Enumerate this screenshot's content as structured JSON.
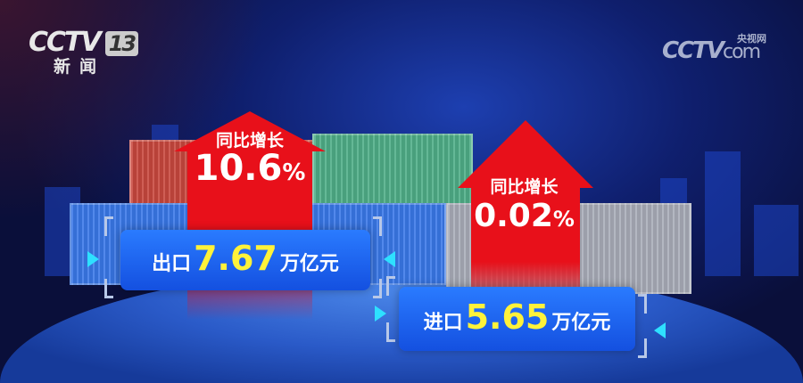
{
  "channel_logo": {
    "brand": "CCTV",
    "number": "13",
    "name": "新闻"
  },
  "watermark": {
    "brand": "CCTV",
    "suffix": "com",
    "name": "央视网"
  },
  "export": {
    "label": "出口",
    "value": "7.67",
    "unit": "万亿元",
    "growth_label": "同比增长",
    "growth_value": "10.6",
    "growth_unit": "%"
  },
  "import": {
    "label": "进口",
    "value": "5.65",
    "unit": "万亿元",
    "growth_label": "同比增长",
    "growth_value": "0.02",
    "growth_unit": "%"
  },
  "colors": {
    "arrow": "#e8101a",
    "value": "#fff23a",
    "box": "#1f66f0"
  }
}
